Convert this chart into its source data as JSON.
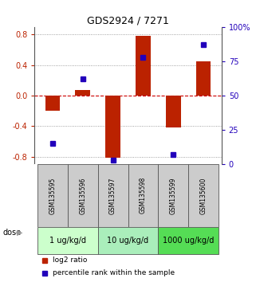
{
  "title": "GDS2924 / 7271",
  "samples": [
    "GSM135595",
    "GSM135596",
    "GSM135597",
    "GSM135598",
    "GSM135599",
    "GSM135600"
  ],
  "log2_ratios": [
    -0.2,
    0.07,
    -0.82,
    0.78,
    -0.42,
    0.45
  ],
  "percentile_ranks": [
    15,
    62,
    3,
    78,
    7,
    87
  ],
  "bar_color": "#bb2200",
  "scatter_color": "#2200bb",
  "ylim_left": [
    -0.9,
    0.9
  ],
  "ylim_right": [
    0,
    100
  ],
  "yticks_left": [
    -0.8,
    -0.4,
    0.0,
    0.4,
    0.8
  ],
  "yticks_right": [
    0,
    25,
    50,
    75,
    100
  ],
  "ytick_labels_right": [
    "0",
    "25",
    "50",
    "75",
    "100%"
  ],
  "hline_color": "#cc0000",
  "dotted_color": "#888888",
  "bg_color": "#ffffff",
  "sample_bg": "#cccccc",
  "dose_groups": [
    {
      "label": "1 ug/kg/d",
      "start": 0,
      "end": 1,
      "color": "#ccffcc"
    },
    {
      "label": "10 ug/kg/d",
      "start": 2,
      "end": 3,
      "color": "#aaeebb"
    },
    {
      "label": "1000 ug/kg/d",
      "start": 4,
      "end": 5,
      "color": "#55dd55"
    }
  ],
  "dose_label": "dose",
  "legend_bar_label": "log2 ratio",
  "legend_scatter_label": "percentile rank within the sample"
}
